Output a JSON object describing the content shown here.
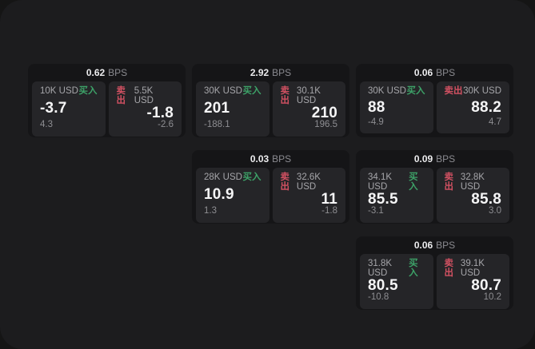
{
  "labels": {
    "bps": "BPS",
    "buy": "买入",
    "sell": "卖出"
  },
  "colors": {
    "buy_green": "#3da268",
    "sell_red": "#d25162",
    "panel_bg": "#1c1c1e",
    "card_bg": "#151517",
    "subcard_bg": "#252528"
  },
  "cards": [
    {
      "bps": "0.62",
      "buy": {
        "amount": "10K USD",
        "price": "-3.7",
        "delta": "4.3"
      },
      "sell": {
        "amount": "5.5K USD",
        "price": "-1.8",
        "delta": "-2.6"
      }
    },
    {
      "bps": "2.92",
      "buy": {
        "amount": "30K USD",
        "price": "201",
        "delta": "-188.1"
      },
      "sell": {
        "amount": "30.1K USD",
        "price": "210",
        "delta": "196.5"
      }
    },
    {
      "bps": "0.06",
      "buy": {
        "amount": "30K USD",
        "price": "88",
        "delta": "-4.9"
      },
      "sell": {
        "amount": "30K USD",
        "price": "88.2",
        "delta": "4.7"
      }
    },
    {
      "bps": "0.03",
      "buy": {
        "amount": "28K USD",
        "price": "10.9",
        "delta": "1.3"
      },
      "sell": {
        "amount": "32.6K USD",
        "price": "11",
        "delta": "-1.8"
      }
    },
    {
      "bps": "0.09",
      "buy": {
        "amount": "34.1K USD",
        "price": "85.5",
        "delta": "-3.1"
      },
      "sell": {
        "amount": "32.8K USD",
        "price": "85.8",
        "delta": "3.0"
      }
    },
    {
      "bps": "0.06",
      "buy": {
        "amount": "31.8K USD",
        "price": "80.5",
        "delta": "-10.8"
      },
      "sell": {
        "amount": "39.1K USD",
        "price": "80.7",
        "delta": "10.2"
      }
    }
  ]
}
